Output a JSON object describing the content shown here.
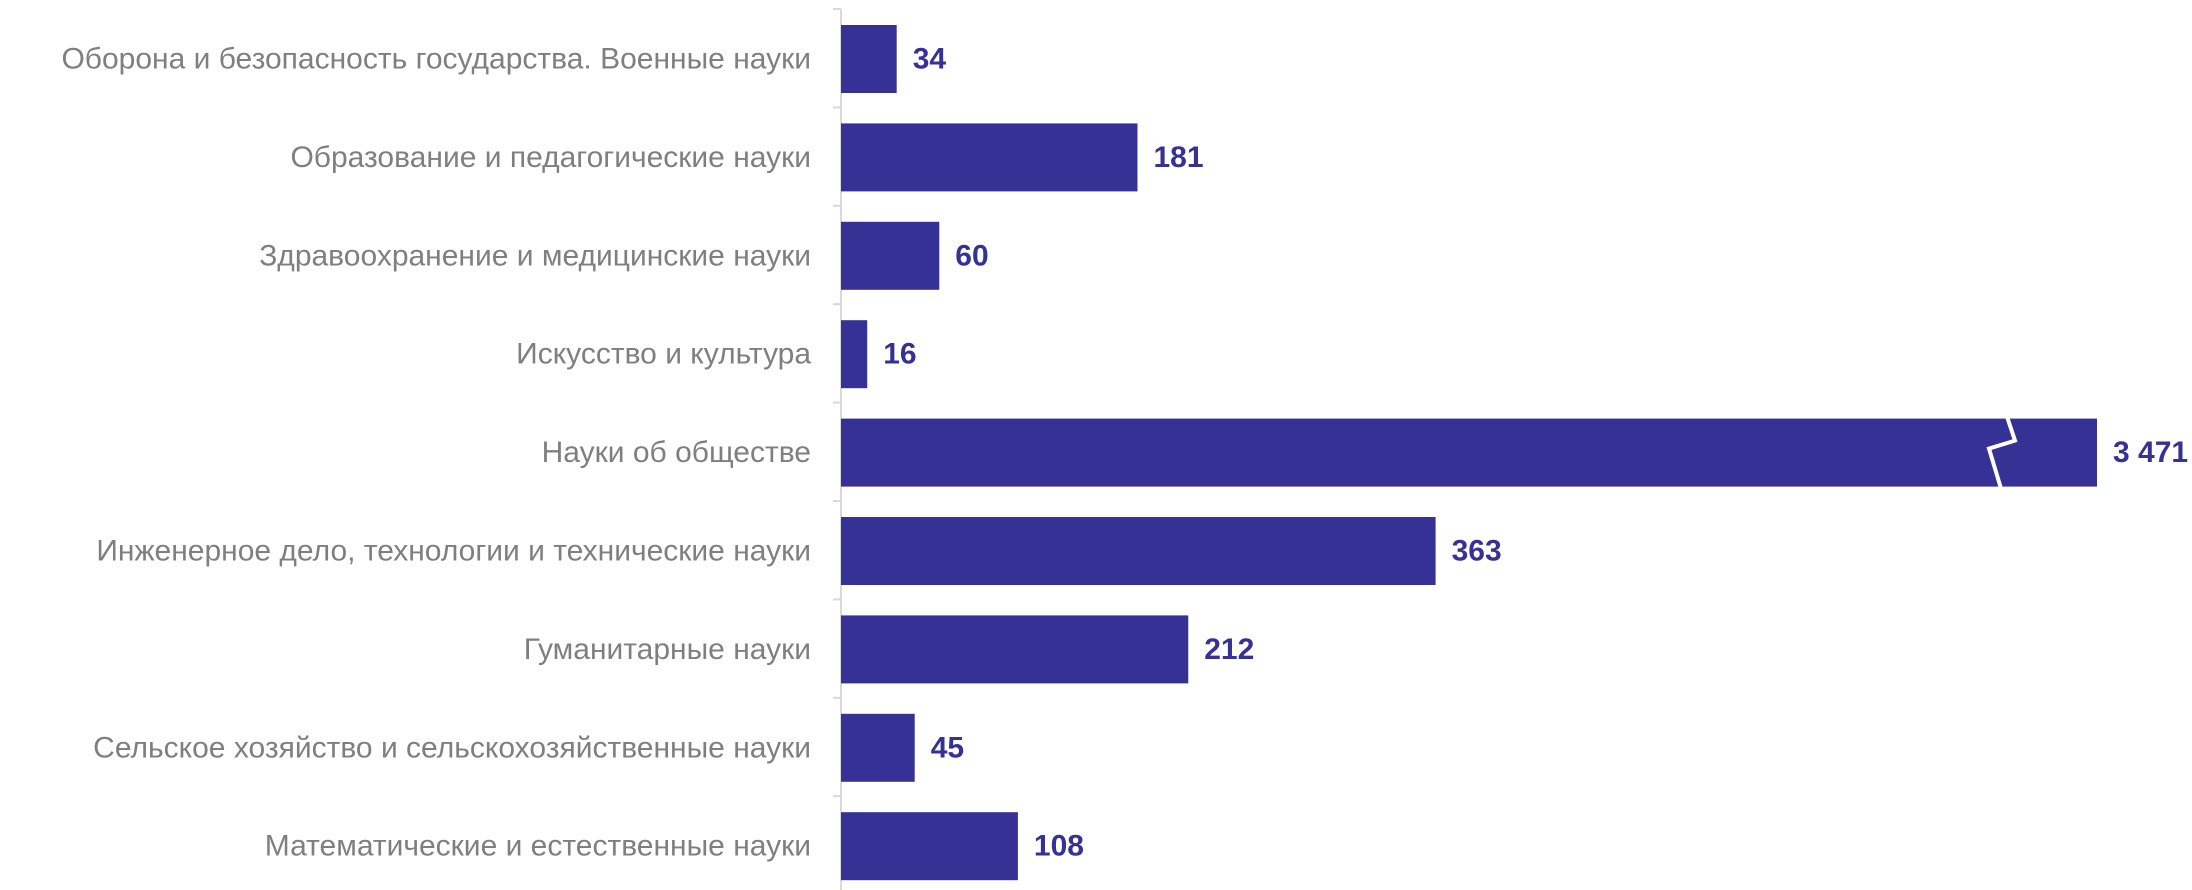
{
  "chart_data": {
    "type": "bar",
    "orientation": "horizontal",
    "categories": [
      "Оборона и безопасность государства. Военные науки",
      "Образование и педагогические науки",
      "Здравоохранение и медицинские науки",
      "Искусство и культура",
      "Науки об обществе",
      "Инженерное дело, технологии и технические науки",
      "Гуманитарные науки",
      "Сельское хозяйство и сельскохозяйственные науки",
      "Математические и естественные науки"
    ],
    "values": [
      34,
      181,
      60,
      16,
      3471,
      363,
      212,
      45,
      108
    ],
    "value_labels": [
      "34",
      "181",
      "60",
      "16",
      "3 471",
      "363",
      "212",
      "45",
      "108"
    ],
    "broken_bars": [
      4
    ],
    "axis_break_value": 680,
    "title": "",
    "xlabel": "",
    "ylabel": "",
    "grid": false,
    "legend": "none",
    "colors": {
      "bar": "#363194",
      "value_label": "#363194",
      "category_label": "#7f7f7f",
      "axis": "#d9d9d9",
      "break_mark": "#ffffff"
    }
  }
}
